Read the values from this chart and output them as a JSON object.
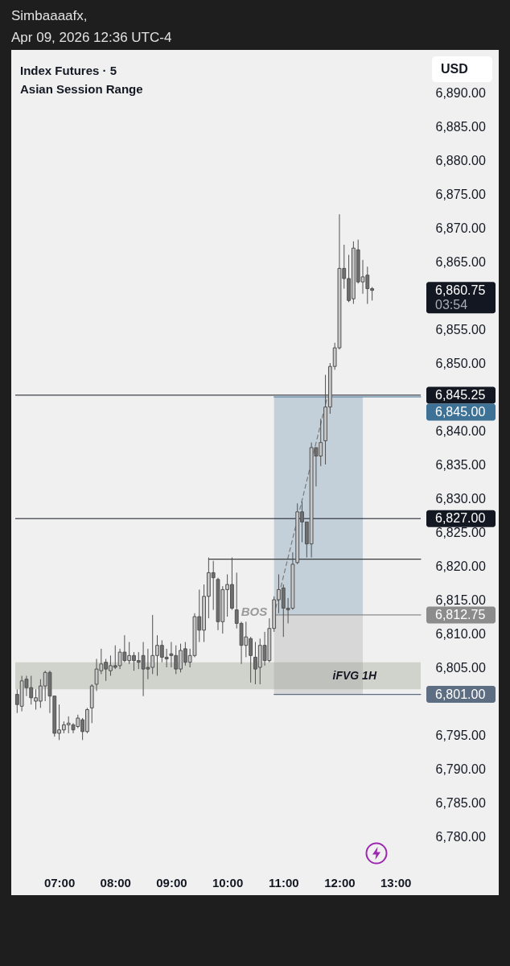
{
  "chart_data": {
    "type": "candlestick",
    "title": "Index Futures · 5",
    "subtitle": "Asian Session Range",
    "ylabel": "USD",
    "x": [
      "2026-04-09T06:15",
      "2026-04-09T06:20",
      "2026-04-09T06:25",
      "2026-04-09T06:30",
      "2026-04-09T06:35",
      "2026-04-09T06:40",
      "2026-04-09T06:45",
      "2026-04-09T06:50",
      "2026-04-09T06:55",
      "2026-04-09T07:00",
      "2026-04-09T07:05",
      "2026-04-09T07:10",
      "2026-04-09T07:15",
      "2026-04-09T07:20",
      "2026-04-09T07:25",
      "2026-04-09T07:30",
      "2026-04-09T07:35",
      "2026-04-09T07:40",
      "2026-04-09T07:45",
      "2026-04-09T07:50",
      "2026-04-09T07:55",
      "2026-04-09T08:00",
      "2026-04-09T08:05",
      "2026-04-09T08:10",
      "2026-04-09T08:15",
      "2026-04-09T08:20",
      "2026-04-09T08:25",
      "2026-04-09T08:30",
      "2026-04-09T08:35",
      "2026-04-09T08:40",
      "2026-04-09T08:45",
      "2026-04-09T08:50",
      "2026-04-09T08:55",
      "2026-04-09T09:00",
      "2026-04-09T09:05",
      "2026-04-09T09:10",
      "2026-04-09T09:15",
      "2026-04-09T09:20",
      "2026-04-09T09:25",
      "2026-04-09T09:30",
      "2026-04-09T09:35",
      "2026-04-09T09:40",
      "2026-04-09T09:45",
      "2026-04-09T09:50",
      "2026-04-09T09:55",
      "2026-04-09T10:00",
      "2026-04-09T10:05",
      "2026-04-09T10:10",
      "2026-04-09T10:15",
      "2026-04-09T10:20",
      "2026-04-09T10:25",
      "2026-04-09T10:30",
      "2026-04-09T10:35",
      "2026-04-09T10:40",
      "2026-04-09T10:45",
      "2026-04-09T10:50",
      "2026-04-09T10:55",
      "2026-04-09T11:00",
      "2026-04-09T11:05",
      "2026-04-09T11:10",
      "2026-04-09T11:15",
      "2026-04-09T11:20",
      "2026-04-09T11:25",
      "2026-04-09T11:30",
      "2026-04-09T11:35",
      "2026-04-09T11:40",
      "2026-04-09T11:45",
      "2026-04-09T11:50",
      "2026-04-09T11:55",
      "2026-04-09T12:00",
      "2026-04-09T12:05",
      "2026-04-09T12:10",
      "2026-04-09T12:15",
      "2026-04-09T12:20",
      "2026-04-09T12:25",
      "2026-04-09T12:30",
      "2026-04-09T12:35"
    ],
    "ohlc": [
      [
        6801.0,
        6801.75,
        6798.25,
        6799.5
      ],
      [
        6799.25,
        6803.75,
        6798.5,
        6803.0
      ],
      [
        6803.25,
        6803.75,
        6800.75,
        6802.0
      ],
      [
        6802.0,
        6803.75,
        6799.5,
        6800.5
      ],
      [
        6800.0,
        6801.75,
        6798.75,
        6800.5
      ],
      [
        6800.0,
        6803.25,
        6799.0,
        6802.25
      ],
      [
        6802.25,
        6804.5,
        6800.0,
        6804.25
      ],
      [
        6804.25,
        6804.5,
        6798.25,
        6800.75
      ],
      [
        6800.75,
        6800.75,
        6794.75,
        6795.25
      ],
      [
        6795.25,
        6799.5,
        6794.25,
        6795.75
      ],
      [
        6795.75,
        6797.0,
        6795.25,
        6796.5
      ],
      [
        6796.5,
        6797.75,
        6795.25,
        6796.75
      ],
      [
        6796.5,
        6796.75,
        6795.25,
        6795.75
      ],
      [
        6796.25,
        6798.0,
        6796.0,
        6797.5
      ],
      [
        6797.25,
        6797.5,
        6794.25,
        6795.5
      ],
      [
        6795.5,
        6799.0,
        6795.25,
        6798.75
      ],
      [
        6799.0,
        6802.5,
        6796.75,
        6802.25
      ],
      [
        6802.5,
        6806.25,
        6801.5,
        6804.75
      ],
      [
        6804.5,
        6807.75,
        6804.0,
        6805.5
      ],
      [
        6805.75,
        6806.25,
        6803.0,
        6804.75
      ],
      [
        6804.5,
        6806.75,
        6803.75,
        6805.25
      ],
      [
        6805.25,
        6808.25,
        6804.75,
        6805.0
      ],
      [
        6805.25,
        6807.75,
        6804.75,
        6807.25
      ],
      [
        6807.25,
        6809.75,
        6805.75,
        6806.0
      ],
      [
        6806.0,
        6808.75,
        6805.5,
        6806.75
      ],
      [
        6806.75,
        6807.25,
        6804.5,
        6806.0
      ],
      [
        6806.0,
        6807.25,
        6804.75,
        6805.75
      ],
      [
        6806.75,
        6808.75,
        6800.75,
        6804.75
      ],
      [
        6805.0,
        6807.75,
        6803.25,
        6804.75
      ],
      [
        6805.0,
        6812.75,
        6804.0,
        6806.75
      ],
      [
        6806.75,
        6809.75,
        6803.75,
        6808.25
      ],
      [
        6808.25,
        6809.0,
        6805.75,
        6806.5
      ],
      [
        6806.5,
        6807.75,
        6805.0,
        6806.25
      ],
      [
        6807.0,
        6808.75,
        6805.0,
        6806.75
      ],
      [
        6806.75,
        6808.25,
        6804.0,
        6804.75
      ],
      [
        6804.75,
        6808.5,
        6804.25,
        6807.5
      ],
      [
        6807.75,
        6808.75,
        6805.25,
        6805.75
      ],
      [
        6805.75,
        6807.75,
        6805.0,
        6806.75
      ],
      [
        6806.75,
        6813.0,
        6806.5,
        6812.5
      ],
      [
        6812.5,
        6816.5,
        6808.75,
        6810.5
      ],
      [
        6810.5,
        6817.25,
        6808.75,
        6815.5
      ],
      [
        6815.5,
        6821.25,
        6812.25,
        6819.0
      ],
      [
        6819.0,
        6820.75,
        6813.5,
        6818.25
      ],
      [
        6818.0,
        6818.25,
        6810.5,
        6811.75
      ],
      [
        6811.75,
        6817.0,
        6810.0,
        6816.5
      ],
      [
        6816.5,
        6818.75,
        6812.5,
        6817.25
      ],
      [
        6817.25,
        6821.25,
        6813.5,
        6813.75
      ],
      [
        6813.5,
        6819.0,
        6810.75,
        6811.5
      ],
      [
        6811.5,
        6811.75,
        6805.5,
        6808.25
      ],
      [
        6808.25,
        6811.75,
        6806.5,
        6809.5
      ],
      [
        6809.25,
        6809.5,
        6802.75,
        6806.75
      ],
      [
        6806.5,
        6808.75,
        6802.5,
        6804.75
      ],
      [
        6805.0,
        6809.25,
        6802.5,
        6808.25
      ],
      [
        6808.25,
        6810.25,
        6805.25,
        6806.0
      ],
      [
        6806.0,
        6812.25,
        6805.75,
        6810.75
      ],
      [
        6810.75,
        6815.5,
        6810.25,
        6815.0
      ],
      [
        6815.0,
        6818.75,
        6813.0,
        6816.5
      ],
      [
        6816.75,
        6817.25,
        6809.5,
        6813.75
      ],
      [
        6813.75,
        6815.25,
        6811.5,
        6813.5
      ],
      [
        6813.75,
        6822.0,
        6813.5,
        6820.25
      ],
      [
        6820.5,
        6829.25,
        6820.25,
        6828.0
      ],
      [
        6828.0,
        6829.5,
        6823.5,
        6826.5
      ],
      [
        6826.5,
        6826.5,
        6821.25,
        6823.25
      ],
      [
        6823.25,
        6838.25,
        6821.25,
        6837.5
      ],
      [
        6837.5,
        6837.5,
        6831.75,
        6836.25
      ],
      [
        6836.25,
        6841.75,
        6834.75,
        6838.25
      ],
      [
        6838.5,
        6848.25,
        6835.0,
        6843.5
      ],
      [
        6843.5,
        6850.0,
        6842.5,
        6849.5
      ],
      [
        6849.5,
        6853.0,
        6849.0,
        6852.25
      ],
      [
        6852.25,
        6872.0,
        6852.0,
        6864.0
      ],
      [
        6864.0,
        6867.5,
        6861.0,
        6862.5
      ],
      [
        6862.5,
        6866.0,
        6859.0,
        6859.25
      ],
      [
        6859.5,
        6868.0,
        6858.75,
        6867.0
      ],
      [
        6866.75,
        6868.25,
        6861.75,
        6862.0
      ],
      [
        6862.0,
        6865.25,
        6860.25,
        6862.75
      ],
      [
        6863.0,
        6864.25,
        6858.75,
        6861.0
      ],
      [
        6861.0,
        6861.25,
        6859.25,
        6860.75
      ]
    ],
    "colors": [
      "#6f6f6f",
      "#c8c8c8",
      "#6f6f6f",
      "#6f6f6f",
      "#c8c8c8",
      "#c8c8c8",
      "#c8c8c8",
      "#6f6f6f",
      "#6f6f6f",
      "#c8c8c8",
      "#c8c8c8",
      "#c8c8c8",
      "#6f6f6f",
      "#c8c8c8",
      "#6f6f6f",
      "#c8c8c8",
      "#c8c8c8",
      "#c8c8c8",
      "#c8c8c8",
      "#6f6f6f",
      "#c8c8c8",
      "#6f6f6f",
      "#c8c8c8",
      "#6f6f6f",
      "#c8c8c8",
      "#6f6f6f",
      "#6f6f6f",
      "#6f6f6f",
      "#6f6f6f",
      "#c8c8c8",
      "#c8c8c8",
      "#6f6f6f",
      "#6f6f6f",
      "#6f6f6f",
      "#6f6f6f",
      "#c8c8c8",
      "#6f6f6f",
      "#c8c8c8",
      "#c8c8c8",
      "#6f6f6f",
      "#c8c8c8",
      "#c8c8c8",
      "#6f6f6f",
      "#6f6f6f",
      "#c8c8c8",
      "#c8c8c8",
      "#6f6f6f",
      "#6f6f6f",
      "#6f6f6f",
      "#c8c8c8",
      "#6f6f6f",
      "#6f6f6f",
      "#c8c8c8",
      "#6f6f6f",
      "#c8c8c8",
      "#c8c8c8",
      "#c8c8c8",
      "#6f6f6f",
      "#6f6f6f",
      "#c8c8c8",
      "#c8c8c8",
      "#6f6f6f",
      "#6f6f6f",
      "#c8c8c8",
      "#6f6f6f",
      "#c8c8c8",
      "#c8c8c8",
      "#c8c8c8",
      "#c8c8c8",
      "#c8c8c8",
      "#6f6f6f",
      "#6f6f6f",
      "#c8c8c8",
      "#6f6f6f",
      "#c8c8c8",
      "#6f6f6f",
      "#6f6f6f"
    ],
    "value_labels": [
      null,
      null,
      null,
      null,
      null,
      null,
      null,
      null,
      null,
      null,
      null,
      null,
      null,
      null,
      null,
      null,
      null,
      null,
      null,
      null,
      null,
      null,
      null,
      null,
      null,
      null,
      null,
      null,
      null,
      null,
      null,
      null,
      null,
      null,
      null,
      null,
      null,
      null,
      null,
      null,
      null,
      null,
      null,
      null,
      null,
      null,
      null,
      null,
      null,
      null,
      null,
      null,
      null,
      null,
      null,
      null,
      null,
      null,
      null,
      null,
      null,
      null,
      null,
      null,
      null,
      null,
      null,
      null,
      null,
      null,
      null,
      null,
      null,
      null,
      null,
      null,
      "6,860.75\n03:54"
    ],
    "series": [
      {
        "type": "line",
        "color": "#3d7196",
        "x": [
          "2026-04-09T10:50",
          "2026-04-09T12:25",
          "2026-04-09T13:27"
        ],
        "values": [
          6845.0,
          6845.0,
          6845.0
        ],
        "lower": [
          6812.75,
          6812.75,
          null
        ],
        "upper": [
          6845.0,
          6845.0,
          null
        ],
        "value_labels": [
          null,
          null,
          "6,845.00"
        ]
      },
      {
        "type": "line",
        "color": "#8c8c8c",
        "x": [
          "2026-04-09T10:50",
          "2026-04-09T12:25",
          "2026-04-09T13:27"
        ],
        "values": [
          6812.75,
          6812.75,
          6812.75
        ],
        "lower": [
          6801.0,
          6801.0,
          null
        ],
        "upper": [
          6812.75,
          6812.75,
          null
        ],
        "value_labels": [
          null,
          null,
          "6,812.75"
        ]
      },
      {
        "type": "line",
        "color": "#5e6e82",
        "x": [
          "2026-04-09T10:50",
          "2026-04-09T13:27"
        ],
        "values": [
          6801.0,
          6801.0
        ],
        "value_labels": [
          null,
          "6,801.00"
        ]
      },
      {
        "type": "line",
        "color": "#7a7a7a",
        "line_style": "dashed",
        "x": [
          "2026-04-09T10:50",
          "2026-04-09T11:47"
        ],
        "values": [
          6812.75,
          6845.0
        ]
      },
      {
        "type": "line",
        "color": "#3c3c3c",
        "x": [
          "2026-04-09T09:40",
          "2026-04-09T13:27"
        ],
        "values": [
          6821,
          6821
        ]
      }
    ],
    "xlim": [
      "2026-04-09T06:13",
      "2026-04-09T13:27"
    ],
    "xticks": [
      {
        "value": "2026-04-09T07:00",
        "label": "07:00"
      },
      {
        "value": "2026-04-09T08:00",
        "label": "08:00"
      },
      {
        "value": "2026-04-09T09:00",
        "label": "09:00"
      },
      {
        "value": "2026-04-09T10:00",
        "label": "10:00"
      },
      {
        "value": "2026-04-09T11:00",
        "label": "11:00"
      },
      {
        "value": "2026-04-09T12:00",
        "label": "12:00"
      },
      {
        "value": "2026-04-09T13:00",
        "label": "13:00"
      }
    ],
    "ylim": [
      6780,
      6890
    ],
    "yticks": [
      {
        "value": 6780,
        "label": "6,780.00"
      },
      {
        "value": 6785,
        "label": "6,785.00"
      },
      {
        "value": 6790,
        "label": "6,790.00"
      },
      {
        "value": 6795,
        "label": "6,795.00"
      },
      {
        "value": 6805,
        "label": "6,805.00"
      },
      {
        "value": 6810,
        "label": "6,810.00"
      },
      {
        "value": 6815,
        "label": "6,815.00"
      },
      {
        "value": 6820,
        "label": "6,820.00"
      },
      {
        "value": 6825,
        "label": "6,825.00"
      },
      {
        "value": 6830,
        "label": "6,830.00"
      },
      {
        "value": 6835,
        "label": "6,835.00"
      },
      {
        "value": 6840,
        "label": "6,840.00"
      },
      {
        "value": 6850,
        "label": "6,850.00"
      },
      {
        "value": 6855,
        "label": "6,855.00"
      },
      {
        "value": 6865,
        "label": "6,865.00"
      },
      {
        "value": 6870,
        "label": "6,870.00"
      },
      {
        "value": 6875,
        "label": "6,875.00"
      },
      {
        "value": 6880,
        "label": "6,880.00"
      },
      {
        "value": 6885,
        "label": "6,885.00"
      },
      {
        "value": 6890,
        "label": "6,890.00"
      }
    ],
    "ref_lines": [
      {
        "axis": "y",
        "value": 6845.25,
        "label": "6,845.25",
        "color": "#131722"
      },
      {
        "axis": "y",
        "value": 6827.0,
        "label": "6,827.00",
        "color": "#131722"
      }
    ],
    "bands": [
      {
        "axis": "y",
        "from": 6801.75,
        "to": 6805.75,
        "label": "iFVG 1H",
        "color": "#d0d3cc"
      }
    ],
    "annotations": [
      "Simbaaaafx,",
      "Apr 09, 2026 12:36 UTC-4",
      "BOS"
    ]
  }
}
